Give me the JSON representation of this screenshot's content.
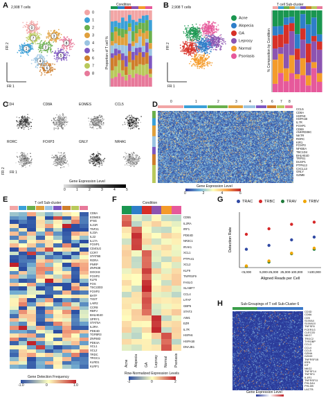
{
  "panel_letters": [
    "A",
    "B",
    "C",
    "D",
    "E",
    "F",
    "G",
    "H"
  ],
  "panelA": {
    "umap_title": "2,908 T cells",
    "x_label": "FR 1",
    "y_label": "FR 2",
    "clusters": [
      "0",
      "1",
      "2",
      "3",
      "4",
      "5",
      "6",
      "7",
      "8"
    ],
    "cluster_colors": [
      "#f2a5a5",
      "#3aa0d8",
      "#6ab04c",
      "#e0a03c",
      "#9bc4e2",
      "#7e57c2",
      "#cf7e2c",
      "#b9c95b",
      "#e7799a"
    ],
    "bar_title": "Condition",
    "bar_ylabel": "Proportion of T cell %"
  },
  "panelB": {
    "umap_title": "2,908 T cells",
    "x_label": "FR 1",
    "y_label": "FR 2",
    "conditions": [
      "Acne",
      "Alopecia",
      "GA",
      "Leprosy",
      "Normal",
      "Psoriasis"
    ],
    "condition_colors": [
      "#1a9650",
      "#2e7ec9",
      "#d73027",
      "#8c54b0",
      "#f49b2a",
      "#e6599b"
    ],
    "bar_title": "T cell Sub-cluster",
    "bar_ylabel": "% Composition by Condition"
  },
  "panelC": {
    "genes": [
      "CD4",
      "CD8A",
      "EOMES",
      "CCL5",
      "RORC",
      "FOXP3",
      "GNLY",
      "NR4A1"
    ],
    "axis_x": "FR 1",
    "axis_y": "FR 2",
    "legend_title": "Gene Expression Level",
    "legend_ticks": [
      "0",
      "1",
      "2",
      "3",
      "4",
      "5"
    ]
  },
  "panelD": {
    "cluster_labels": [
      "0",
      "1",
      "2",
      "3",
      "4",
      "5",
      "6",
      "7",
      "8"
    ],
    "genes": [
      "CCL5",
      "CD8A",
      "HSPA8",
      "HSPA1B",
      "IL7R",
      "FOXP1",
      "CD69",
      "ANKRD36C",
      "NKTR",
      "RORC",
      "KIR1",
      "FOXP3",
      "NFKBIA",
      "TBC1D4",
      "BHLHE40",
      "TRPS1",
      "DUSP1",
      "PTPN13",
      "CXCL13",
      "GNLY",
      "GZMB"
    ],
    "legend_title": "Gene Expression Level",
    "legend_ticks": [
      "0",
      "2",
      "4",
      "6"
    ]
  },
  "panelE": {
    "title": "T cell Sub-cluster",
    "genes": [
      "CD8A",
      "EOMES",
      "IFNG",
      "IL21R",
      "TNF21",
      "IL23A",
      "IL22",
      "IL17A",
      "FOXP1",
      "CD40LG",
      "CCR7",
      "STAT5B",
      "RORA",
      "PNRP",
      "ZNF638",
      "DOCK8",
      "FOXP3",
      "KLF6",
      "FOS",
      "TSC22D3",
      "FOXP3",
      "BATF",
      "TIGIT",
      "LAIR2",
      "CCR8",
      "RBPJ",
      "BHLHE40",
      "SPRY1",
      "STAT5A",
      "IL2RA",
      "PDE4D",
      "TGFBR3",
      "ZNF683",
      "PDE4A",
      "XCL1",
      "XCL2",
      "TRDC",
      "TRGC1",
      "KLRD1",
      "KLRF1"
    ],
    "legend_title": "Gene Detection Frequency",
    "legend_ticks": [
      "-1.0",
      "0",
      "1.0"
    ]
  },
  "panelF": {
    "title": "Condition",
    "genes": [
      "CD55",
      "IL2RA",
      "IRF1",
      "PDE4D",
      "NR3C1",
      "IRAK1",
      "XCL1",
      "PTPA41",
      "XCL2",
      "KLF9",
      "TNFRSF9",
      "FASLG",
      "SLAMF7",
      "CCL4",
      "LITAF",
      "GBP5",
      "STAT3",
      "AIM1",
      "EZR",
      "IL7R",
      "HSPA6",
      "HSPA1B",
      "DNAJB1"
    ],
    "conditions": [
      "Acne",
      "Alopecia",
      "GA",
      "Leprosy",
      "Normal",
      "Psoriasis"
    ],
    "legend_title": "Row-Normalized Expression Levels",
    "legend_ticks": [
      "-2",
      "0",
      "2"
    ]
  },
  "panelG": {
    "chart_data": {
      "type": "scatter",
      "xlabel": "Aligned Reads per Cell",
      "ylabel": "Detection Rate",
      "categories": [
        "<5,000",
        "5,000-25,000",
        "25,000-100,000",
        ">100,000"
      ],
      "series": [
        {
          "name": "TRAC",
          "color": "#3049a3",
          "values": [
            0.33,
            0.4,
            0.5,
            0.55
          ]
        },
        {
          "name": "TRBC",
          "color": "#d62728",
          "values": [
            0.6,
            0.7,
            0.78,
            0.82
          ]
        },
        {
          "name": "TRAV",
          "color": "#1f7a3a",
          "values": [
            0.02,
            0.1,
            0.25,
            0.33
          ]
        },
        {
          "name": "TRBV",
          "color": "#f0a500",
          "values": [
            0.03,
            0.12,
            0.26,
            0.35
          ]
        }
      ],
      "ylim": [
        0,
        1
      ]
    }
  },
  "panelH": {
    "title": "Sub-Groupings of T cell Sub-Cluster 6",
    "genes": [
      "CD3D",
      "CD8A",
      "CD5",
      "S100A4",
      "S100A10",
      "TNFSF8",
      "FCER1G",
      "CLEC2D",
      "NKG7",
      "TRGC2",
      "TYROBP",
      "CCL3",
      "CCL4",
      "CCL5",
      "GZMA",
      "GZMH",
      "TNFRSF1B",
      "IRF8",
      "KIT",
      "NKG2",
      "TNFSF14",
      "TNFSF4",
      "IL1R1",
      "TNFRSF11",
      "PHLDA1",
      "PHLDB",
      "LACTB"
    ],
    "legend_title": "Gene Expression Level",
    "legend_ticks": [
      "0",
      "5"
    ]
  }
}
